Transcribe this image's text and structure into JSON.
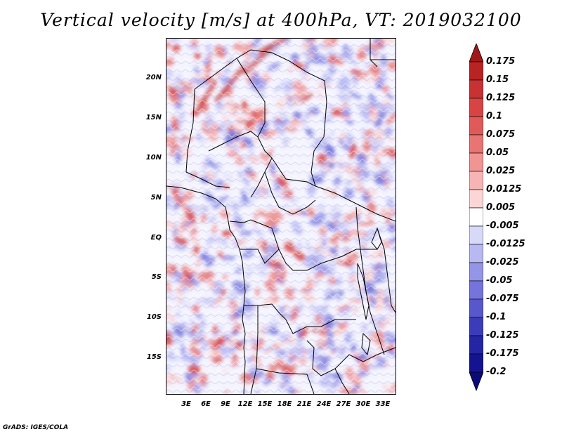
{
  "title": "Vertical velocity [m/s] at 400hPa, VT: 2019032100",
  "y_ticks": [
    "20N",
    "15N",
    "10N",
    "5N",
    "EQ",
    "5S",
    "10S",
    "15S"
  ],
  "x_ticks": [
    "3E",
    "6E",
    "9E",
    "12E",
    "15E",
    "18E",
    "21E",
    "24E",
    "27E",
    "30E",
    "33E"
  ],
  "colorbar": {
    "labels": [
      "0.175",
      "0.15",
      "0.125",
      "0.1",
      "0.075",
      "0.05",
      "0.025",
      "0.0125",
      "0.005",
      "-0.005",
      "-0.0125",
      "-0.025",
      "-0.05",
      "-0.075",
      "-0.1",
      "-0.125",
      "-0.175",
      "-0.2"
    ],
    "colors": [
      "#a01818",
      "#b82424",
      "#c83232",
      "#d84444",
      "#e05a5a",
      "#e87474",
      "#f09494",
      "#f6b4b4",
      "#fad6d6",
      "#ffffff",
      "#d8d8f8",
      "#b8b8f2",
      "#9494e8",
      "#7474dc",
      "#5858cc",
      "#3c3cba",
      "#2424a4",
      "#141490",
      "#0a0a78"
    ]
  },
  "footer": "GrADS: IGES/COLA"
}
